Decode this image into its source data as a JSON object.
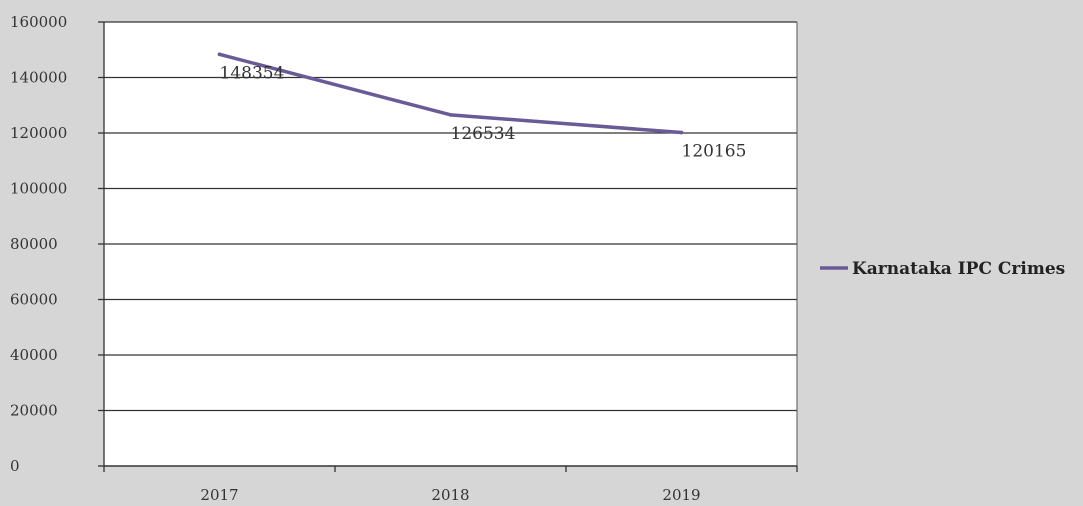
{
  "chart_data": {
    "type": "line",
    "title": "",
    "xlabel": "",
    "ylabel": "",
    "categories": [
      "2017",
      "2018",
      "2019"
    ],
    "series": [
      {
        "name": "Karnataka IPC Crimes",
        "values": [
          148354,
          126534,
          120165
        ],
        "color": "#6a5a98"
      }
    ],
    "data_labels": [
      "148354",
      "126534",
      "120165"
    ],
    "ylim": [
      0,
      160000
    ],
    "yticks": [
      0,
      20000,
      40000,
      60000,
      80000,
      100000,
      120000,
      140000,
      160000
    ],
    "ytick_labels": [
      "0",
      "20000",
      "40000",
      "60000",
      "80000",
      "100000",
      "120000",
      "140000",
      "160000"
    ],
    "grid": true,
    "legend_position": "right",
    "colors": {
      "background": "#d6d6d6",
      "plot_area": "#ffffff",
      "gridline": "#333333"
    }
  }
}
